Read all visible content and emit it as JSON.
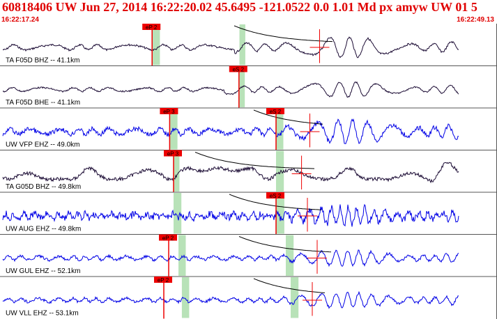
{
  "header": {
    "title": "60818406 UW Jun 27, 2014 16:22:20.02   45.6495 -121.0522  0.0 1.01 Md px amyw UW 01   5",
    "start_time": "16:22:17.24",
    "end_time": "16:22:49.13"
  },
  "colors": {
    "header_red": "#e00000",
    "pick_red": "#ee0000",
    "window_green": "#b8e2b8",
    "trace_blue": "#0000e6",
    "trace_dark": "#1a0a33",
    "separator": "#555555"
  },
  "traces": [
    {
      "label": "TA F05D BHZ -- 41.1km",
      "color": "dark",
      "amp": 8,
      "freq": 0.16,
      "noise": 0.25,
      "arrival": 0.5,
      "green": [
        0.306,
        0.322
      ],
      "pick": {
        "label": "eP 2",
        "at": 0.306
      },
      "green2": [
        0.485,
        0.497
      ],
      "coda_start": 0.48,
      "amp_marker": 0.655
    },
    {
      "label": "TA F05D BHE -- 41.1km",
      "color": "dark",
      "amp": 6,
      "freq": 0.18,
      "noise": 0.25,
      "arrival": 0.48,
      "green": [
        0.484,
        0.496
      ],
      "pick": {
        "label": "eS 2",
        "at": 0.484
      },
      "green2": null,
      "coda_start": null,
      "amp_marker": null
    },
    {
      "label": "UW VFP EHZ -- 49.0km",
      "color": "blue",
      "amp": 9,
      "freq": 0.22,
      "noise": 0.5,
      "arrival": 0.56,
      "green": [
        0.342,
        0.358
      ],
      "pick": {
        "label": "eP 3",
        "at": 0.342
      },
      "green2": [
        0.56,
        0.575
      ],
      "pick2": {
        "label": "eS 2",
        "at": 0.56
      },
      "coda_start": 0.52,
      "amp_marker": 0.635
    },
    {
      "label": "TA G05D BHZ -- 49.8km",
      "color": "dark",
      "amp": 18,
      "freq": 0.035,
      "noise": 0.2,
      "arrival": 0.9,
      "green": [
        0.35,
        0.362
      ],
      "pick": {
        "label": "eP 3",
        "at": 0.35
      },
      "green2": [
        0.56,
        0.576
      ],
      "coda_start": 0.4,
      "amp_marker": 0.618
    },
    {
      "label": "UW AUG EHZ -- 49.8km",
      "color": "blue",
      "amp": 7,
      "freq": 0.45,
      "noise": 1.0,
      "arrival": 0.58,
      "green": [
        0.35,
        0.366
      ],
      "pick": null,
      "green2": [
        0.56,
        0.577
      ],
      "pick2": {
        "label": "eS 2",
        "at": 0.56
      },
      "coda_start": 0.47,
      "amp_marker": 0.63
    },
    {
      "label": "UW GUL EHZ -- 52.1km",
      "color": "blue",
      "amp": 6,
      "freq": 0.3,
      "noise": 0.45,
      "arrival": 0.6,
      "green": [
        0.36,
        0.375
      ],
      "pick": {
        "label": "eP 2",
        "at": 0.34
      },
      "green2": [
        0.58,
        0.596
      ],
      "coda_start": 0.49,
      "amp_marker": 0.65
    },
    {
      "label": "UW VLL EHZ -- 53.1km",
      "color": "blue",
      "amp": 6,
      "freq": 0.3,
      "noise": 0.45,
      "arrival": 0.6,
      "green": [
        0.367,
        0.382
      ],
      "pick": {
        "label": "eP 2",
        "at": 0.33
      },
      "green2": [
        0.59,
        0.606
      ],
      "coda_start": 0.52,
      "amp_marker": 0.64
    }
  ]
}
